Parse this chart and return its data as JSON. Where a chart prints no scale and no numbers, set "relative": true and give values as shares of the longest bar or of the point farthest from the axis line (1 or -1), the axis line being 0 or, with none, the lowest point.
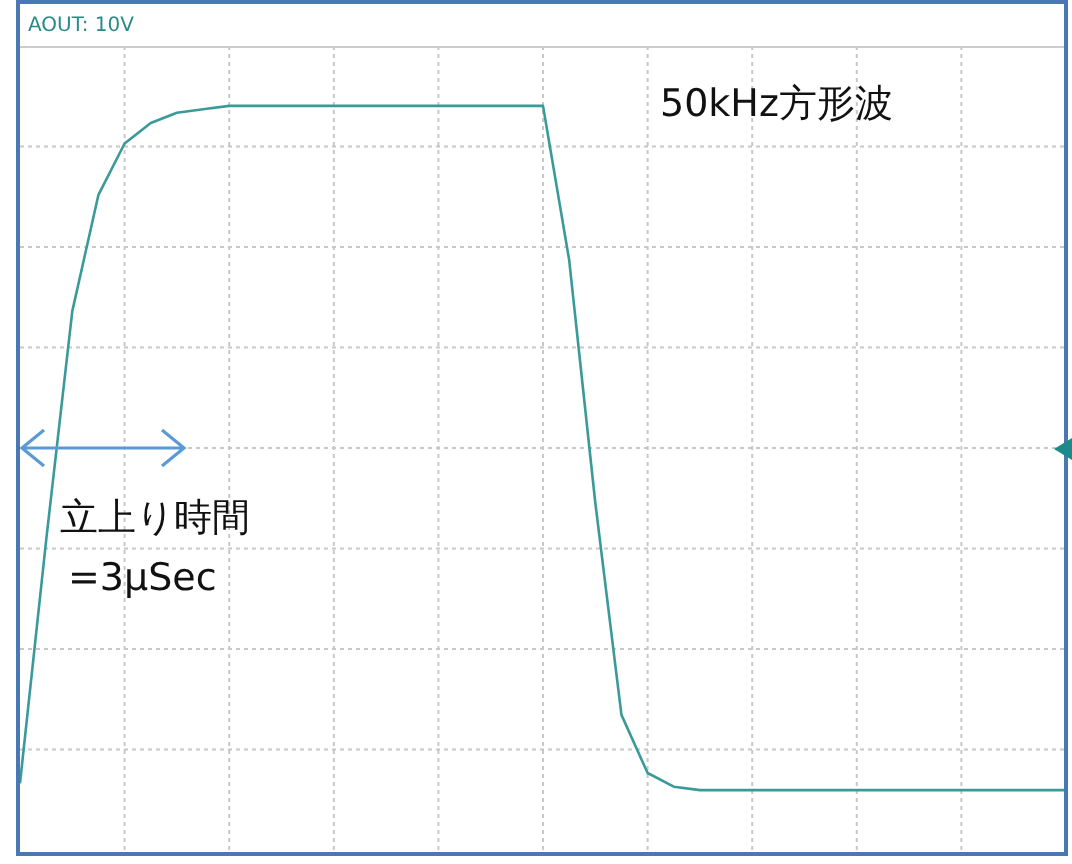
{
  "chart_data": {
    "type": "line",
    "title": "AOUT: 10V",
    "relative": true,
    "grid": true,
    "legend": false,
    "marker": "none",
    "line_style": "solid",
    "categories": [
      null,
      null,
      null,
      null,
      null,
      null,
      null,
      null,
      null,
      null,
      null,
      null,
      null,
      null,
      null,
      null,
      null,
      null,
      null,
      null,
      null,
      null,
      null,
      null,
      null,
      null,
      null,
      null,
      null,
      null,
      null,
      null,
      null,
      null,
      null,
      null,
      null,
      null,
      null,
      null,
      null
    ],
    "series": [
      {
        "color": "#3a9a9a",
        "values": [
          -0.98,
          -0.27,
          0.4,
          0.74,
          0.89,
          0.95,
          0.98,
          0.99,
          1,
          1,
          1,
          1,
          1,
          1,
          1,
          1,
          1,
          1,
          1,
          1,
          1,
          0.55,
          -0.16,
          -0.78,
          -0.95,
          -0.99,
          -1,
          -1,
          -1,
          -1,
          -1,
          -1,
          -1,
          -1,
          -1,
          -1,
          -1,
          -1,
          -1,
          -1,
          -1
        ]
      }
    ],
    "annotations": [
      "50kHz方形波",
      "立上り時間\n=3μSec"
    ]
  }
}
